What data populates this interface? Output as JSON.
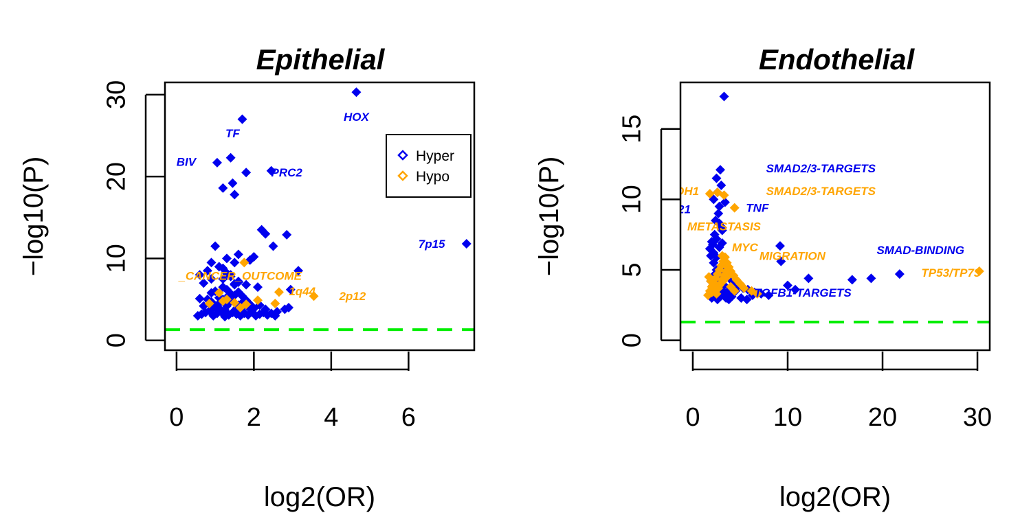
{
  "chart_data": [
    {
      "type": "scatter",
      "title": "Epithelial",
      "xlabel": "log2(OR)",
      "ylabel": "−log10(P)",
      "xlim": [
        -0.3,
        7.7
      ],
      "ylim": [
        -1.2,
        31.5
      ],
      "xticks": [
        0,
        2,
        4,
        6
      ],
      "yticks": [
        0,
        10,
        20,
        30
      ],
      "xtick_labels": [
        "0",
        "2",
        "4",
        "6"
      ],
      "ytick_labels": [
        "0",
        "10",
        "20",
        "30"
      ],
      "threshold": 1.3,
      "threshold_color": "#00ee00",
      "grid": false,
      "legend": {
        "placement": "top-right",
        "entries": [
          "Hyper",
          "Hypo"
        ]
      },
      "series": [
        {
          "name": "Hyper",
          "color": "#0000ee",
          "x": [
            4.65,
            1.7,
            1.4,
            1.05,
            1.8,
            2.45,
            1.2,
            1.45,
            1.5,
            7.5,
            2.3,
            2.2,
            2.5,
            2.85,
            1.0,
            1.6,
            1.9,
            2.0,
            3.15,
            2.95,
            2.9,
            0.9,
            0.6,
            0.8,
            1.1,
            1.3,
            1.5,
            1.2,
            0.7,
            0.9,
            1.4,
            1.6,
            1.8,
            2.1,
            1.35,
            0.55,
            0.65,
            0.75,
            0.85,
            0.95,
            1.05,
            1.15,
            1.25,
            1.35,
            1.45,
            1.55,
            1.65,
            1.75,
            1.85,
            1.95,
            2.05,
            2.15,
            2.25,
            2.35,
            2.45,
            2.55,
            1.0,
            1.1,
            1.2,
            1.3,
            1.4,
            1.5,
            1.6,
            1.7,
            0.8,
            0.9,
            1.0,
            1.1,
            1.2,
            1.3,
            1.4,
            1.5,
            1.6,
            1.7,
            1.8,
            1.9,
            2.0,
            1.2,
            1.3,
            1.4,
            1.5,
            1.6,
            2.6,
            2.8,
            0.7,
            0.95,
            1.25,
            1.55,
            1.85,
            2.15,
            0.6,
            0.9,
            1.1,
            1.3,
            1.7,
            2.3
          ],
          "y": [
            30.3,
            27.0,
            22.3,
            21.7,
            20.5,
            20.7,
            18.6,
            19.2,
            17.8,
            11.8,
            13.0,
            13.5,
            11.5,
            12.9,
            11.5,
            10.5,
            9.8,
            10.2,
            8.5,
            6.2,
            4.0,
            9.5,
            8.0,
            8.5,
            9.0,
            10.0,
            9.5,
            8.8,
            7.0,
            7.5,
            8.0,
            7.2,
            6.8,
            6.5,
            5.5,
            3.0,
            3.2,
            3.4,
            3.6,
            3.0,
            3.3,
            3.5,
            2.9,
            3.1,
            3.4,
            3.2,
            3.0,
            3.3,
            3.1,
            3.6,
            3.0,
            3.2,
            3.4,
            3.1,
            3.3,
            3.0,
            4.0,
            4.5,
            5.0,
            4.2,
            4.8,
            5.5,
            4.3,
            4.6,
            5.0,
            5.8,
            6.0,
            5.2,
            6.5,
            6.2,
            5.7,
            6.8,
            5.9,
            5.4,
            4.9,
            4.4,
            3.9,
            7.5,
            8.2,
            7.8,
            6.9,
            7.1,
            3.5,
            3.8,
            4.2,
            4.0,
            3.7,
            3.9,
            4.1,
            4.3,
            5.1,
            4.7,
            3.9,
            4.4,
            3.6,
            3.8
          ]
        },
        {
          "name": "Hypo",
          "color": "#ffa500",
          "x": [
            1.75,
            1.1,
            1.2,
            0.85,
            1.8,
            2.1,
            2.65,
            2.55,
            3.55,
            1.3,
            1.5,
            1.65
          ],
          "y": [
            9.5,
            5.8,
            4.8,
            4.5,
            4.4,
            4.9,
            5.9,
            4.5,
            5.4,
            5.0,
            4.6,
            4.0
          ]
        }
      ],
      "annotations": [
        {
          "text": "HOX",
          "x": 4.65,
          "y": 27.3,
          "color": "#0000ee"
        },
        {
          "text": "TF",
          "x": 1.45,
          "y": 25.3,
          "color": "#0000ee"
        },
        {
          "text": "BIV",
          "x": 0.25,
          "y": 21.8,
          "color": "#0000ee"
        },
        {
          "text": "PRC2",
          "x": 2.85,
          "y": 20.5,
          "color": "#0000ee"
        },
        {
          "text": "7p15",
          "x": 6.6,
          "y": 11.8,
          "color": "#0000ee"
        },
        {
          "text": "_CANCER_OUTCOME",
          "x": 1.65,
          "y": 7.9,
          "color": "#ffa500"
        },
        {
          "text": "1q44",
          "x": 3.25,
          "y": 6.0,
          "color": "#ffa500"
        },
        {
          "text": "2p12",
          "x": 4.55,
          "y": 5.4,
          "color": "#ffa500"
        }
      ]
    },
    {
      "type": "scatter",
      "title": "Endothelial",
      "xlabel": "log2(OR)",
      "ylabel": "−log10(P)",
      "xlim": [
        -1.3,
        31.3
      ],
      "ylim": [
        -0.7,
        18.3
      ],
      "xticks": [
        0,
        10,
        20,
        30
      ],
      "yticks": [
        0,
        5,
        10,
        15
      ],
      "xtick_labels": [
        "0",
        "10",
        "20",
        "30"
      ],
      "ytick_labels": [
        "0",
        "5",
        "10",
        "15"
      ],
      "threshold": 1.3,
      "threshold_color": "#00ee00",
      "grid": false,
      "series": [
        {
          "name": "Hyper",
          "color": "#0000ee",
          "x": [
            3.3,
            2.9,
            2.5,
            3.0,
            2.2,
            2.6,
            2.8,
            3.4,
            2.4,
            2.7,
            3.1,
            2.3,
            2.0,
            1.8,
            2.1,
            1.9,
            2.2,
            2.5,
            2.8,
            3.1,
            3.4,
            3.7,
            4.0,
            4.4,
            4.8,
            5.3,
            5.8,
            6.5,
            7.2,
            8.0,
            9.2,
            9.3,
            10.0,
            10.8,
            12.2,
            16.8,
            18.8,
            21.8,
            2.0,
            2.3,
            2.6,
            2.9,
            3.2,
            3.5,
            3.8,
            4.1,
            2.1,
            2.4,
            2.7,
            3.0,
            3.3,
            3.6,
            2.2,
            2.5,
            2.8,
            3.1,
            1.9,
            2.2,
            2.5,
            2.8,
            3.1,
            3.4,
            3.9,
            4.5,
            5.1,
            5.7,
            6.3
          ],
          "y": [
            17.3,
            12.1,
            11.5,
            11.0,
            10.0,
            10.5,
            9.5,
            9.8,
            8.5,
            9.0,
            8.0,
            7.5,
            7.0,
            6.5,
            6.8,
            6.0,
            5.5,
            5.0,
            4.5,
            4.8,
            5.2,
            4.6,
            4.3,
            4.1,
            3.9,
            3.7,
            3.6,
            3.4,
            3.3,
            3.2,
            6.7,
            5.6,
            3.9,
            3.6,
            4.4,
            4.3,
            4.4,
            4.7,
            3.0,
            3.2,
            2.9,
            3.1,
            3.3,
            3.0,
            2.9,
            3.1,
            3.5,
            3.8,
            4.0,
            3.6,
            3.9,
            3.4,
            6.2,
            7.2,
            8.3,
            7.8,
            4.2,
            4.6,
            5.9,
            6.6,
            6.9,
            5.3,
            4.9,
            3.5,
            3.0,
            2.9,
            3.2
          ]
        },
        {
          "name": "Hypo",
          "color": "#ffa500",
          "x": [
            1.8,
            2.6,
            3.3,
            4.4,
            3.1,
            30.2,
            1.6,
            1.8,
            2.0,
            2.2,
            2.4,
            2.6,
            2.8,
            3.0,
            3.2,
            3.4,
            3.6,
            3.8,
            4.0,
            4.3,
            4.6,
            5.0,
            5.4,
            1.7,
            1.9,
            2.1,
            2.3,
            2.5,
            2.7,
            2.9,
            3.1,
            3.3,
            3.5,
            3.7,
            2.0,
            2.4,
            2.8,
            3.2,
            3.6,
            4.0,
            4.4,
            6.2,
            6.8
          ],
          "y": [
            10.4,
            10.5,
            10.3,
            9.4,
            6.0,
            4.9,
            3.2,
            3.5,
            3.8,
            4.1,
            4.4,
            4.7,
            5.0,
            5.3,
            5.6,
            5.9,
            5.5,
            5.2,
            4.9,
            4.6,
            4.3,
            4.0,
            3.7,
            4.5,
            4.2,
            3.9,
            3.6,
            3.3,
            3.7,
            4.0,
            4.3,
            4.6,
            4.9,
            5.2,
            3.4,
            3.6,
            3.9,
            4.2,
            4.5,
            3.8,
            3.5,
            3.5,
            3.3
          ]
        }
      ],
      "annotations": [
        {
          "text": "SMAD2/3-TARGETS",
          "x": 13.5,
          "y": 12.2,
          "color": "#0000ee"
        },
        {
          "text": "SMAD2/3-TARGETS",
          "x": 13.5,
          "y": 10.6,
          "color": "#ffa500"
        },
        {
          "text": "TNF",
          "x": 6.8,
          "y": 9.4,
          "color": "#0000ee"
        },
        {
          "text": "OH1",
          "x": -0.6,
          "y": 10.6,
          "color": "#ffa500"
        },
        {
          "text": "21",
          "x": -0.9,
          "y": 9.3,
          "color": "#0000ee"
        },
        {
          "text": "METASTASIS",
          "x": 3.3,
          "y": 8.1,
          "color": "#ffa500"
        },
        {
          "text": "MYC",
          "x": 5.5,
          "y": 6.6,
          "color": "#ffa500"
        },
        {
          "text": "MIGRATION",
          "x": 10.5,
          "y": 6.0,
          "color": "#ffa500"
        },
        {
          "text": "SMAD-BINDING",
          "x": 24.0,
          "y": 6.4,
          "color": "#0000ee"
        },
        {
          "text": "TP53/TP73",
          "x": 27.2,
          "y": 4.8,
          "color": "#ffa500"
        },
        {
          "text": "TGFB1-TARGETS",
          "x": 11.6,
          "y": 3.4,
          "color": "#0000ee"
        }
      ]
    }
  ]
}
